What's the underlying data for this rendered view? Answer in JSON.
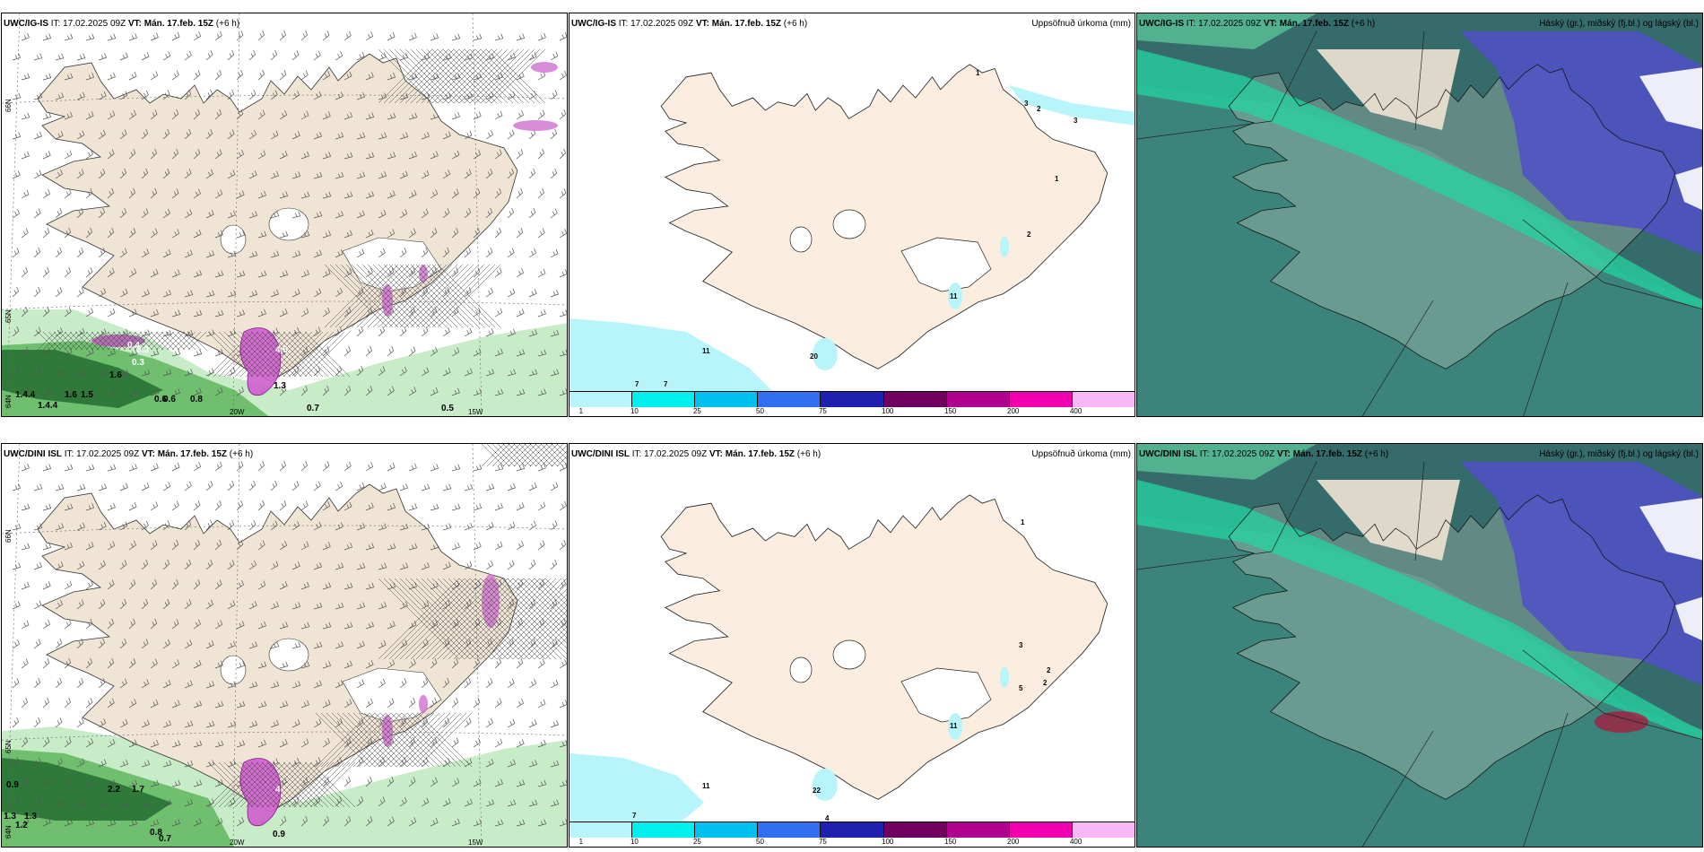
{
  "rows": [
    {
      "model": "UWC/IG-IS",
      "panels": [
        {
          "id": "wind",
          "model": "UWC/IG-IS",
          "it_label": "IT:",
          "it": "17.02.2025 09Z",
          "vt_label": "VT:",
          "vt": "Mán. 17.feb. 15Z",
          "lead": "(+6 h)",
          "right_title": ""
        },
        {
          "id": "precip",
          "model": "UWC/IG-IS",
          "it_label": "IT:",
          "it": "17.02.2025 09Z",
          "vt_label": "VT:",
          "vt": "Mán. 17.feb. 15Z",
          "lead": "(+6 h)",
          "right_title": "Uppsöfnuð úrkoma (mm)"
        },
        {
          "id": "cloud",
          "model": "UWC/IG-IS",
          "it_label": "IT:",
          "it": "17.02.2025 09Z",
          "vt_label": "VT:",
          "vt": "Mán. 17.feb. 15Z",
          "lead": "(+6 h)",
          "right_title": "Háský (gr.), miðský (fj.bl.) og lágský (bl.)"
        }
      ],
      "wind_values": [
        "0.4",
        "0.3",
        "0.3",
        "1.6",
        "1.4.4",
        "1.4.4",
        "1.6",
        "1.5",
        "0.6",
        "0.6",
        "0.8",
        "0.7",
        "0.5",
        "4.6",
        "1.3"
      ],
      "precip_values": [
        "1",
        "3",
        "2",
        "3",
        "1",
        "2",
        "11",
        "7",
        "7",
        "20",
        "11"
      ]
    },
    {
      "model": "UWC/DINI ISL",
      "panels": [
        {
          "id": "wind",
          "model": "UWC/DINI ISL",
          "it_label": "IT:",
          "it": "17.02.2025 09Z",
          "vt_label": "VT:",
          "vt": "Mán. 17.feb. 15Z",
          "lead": "(+6 h)",
          "right_title": ""
        },
        {
          "id": "precip",
          "model": "UWC/DINI ISL",
          "it_label": "IT:",
          "it": "17.02.2025 09Z",
          "vt_label": "VT:",
          "vt": "Mán. 17.feb. 15Z",
          "lead": "(+6 h)",
          "right_title": "Uppsöfnuð úrkoma (mm)"
        },
        {
          "id": "cloud",
          "model": "UWC/DINI ISL",
          "it_label": "IT:",
          "it": "17.02.2025 09Z",
          "vt_label": "VT:",
          "vt": "Mán. 17.feb. 15Z",
          "lead": "(+6 h)",
          "right_title": "Háský (gr.), miðský (fj.bl.) og lágský (bl.)"
        }
      ],
      "wind_values": [
        "0.9",
        "2.2",
        "1.7",
        "1.3",
        "1.3",
        "1.2",
        "0.8",
        "0.7",
        "0.9",
        "4"
      ],
      "precip_values": [
        "1",
        "3",
        "2",
        "2",
        "5",
        "11",
        "11",
        "7",
        "4",
        "22"
      ]
    }
  ],
  "axes": {
    "lon_labels": [
      "20W",
      "15W"
    ],
    "lat_labels": [
      "66N",
      "65N",
      "64N"
    ]
  },
  "colorbar": {
    "ticks": [
      "1",
      "10",
      "25",
      "50",
      "75",
      "100",
      "150",
      "200",
      "400"
    ],
    "colors": [
      "#b8f5fa",
      "#00f0f0",
      "#00c0f0",
      "#3070f0",
      "#2020b0",
      "#700060",
      "#b00090",
      "#f000b0",
      "#f8b8f8"
    ]
  },
  "colors": {
    "land": "#f0e4d4",
    "land_precip": "#fbeee0",
    "precip_light": "#b8f5fa",
    "green_dark": "#2f7a3a",
    "green_mid": "#6fbf6f",
    "green_light": "#c8ebc8",
    "cloud_dark": "#356b6b",
    "cloud_mid": "#3f8a80",
    "cloud_green": "#24d4a0",
    "cloud_blue": "#5050c8",
    "white": "#ffffff"
  }
}
